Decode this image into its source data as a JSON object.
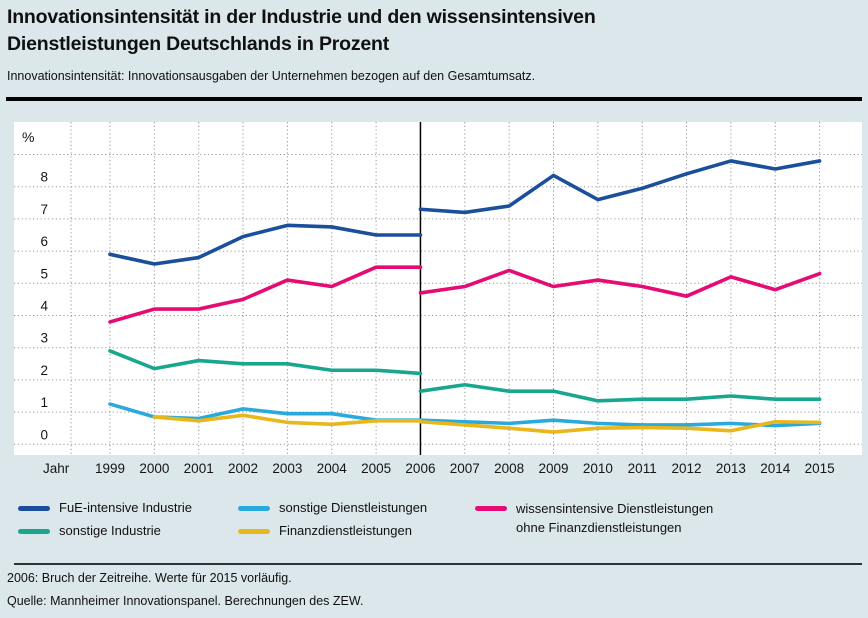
{
  "page": {
    "background": "#dce7ec"
  },
  "header": {
    "title_line1": "Innovationsintensität in der Industrie und den wissensintensiven",
    "title_line2": "Dienstleistungen Deutschlands in Prozent",
    "subtitle": "Innovationsintensität: Innovationsausgaben der Unternehmen bezogen auf den Gesamtumsatz."
  },
  "chart_data": {
    "type": "line",
    "unit_label": "%",
    "xlabel": "Jahr",
    "x": [
      1999,
      2000,
      2001,
      2002,
      2003,
      2004,
      2005,
      2006,
      2007,
      2008,
      2009,
      2010,
      2011,
      2012,
      2013,
      2014,
      2015
    ],
    "yticks": [
      "0",
      "1",
      "2",
      "3",
      "4",
      "5",
      "6",
      "7",
      "8"
    ],
    "ylim": [
      0,
      9
    ],
    "grid": "dotted-both-axes",
    "legend_position": "bottom",
    "break_year": 2006,
    "grid_color": "#95989c",
    "break_line_color": "#000000",
    "series": [
      {
        "name": "FuE-intensive Industrie",
        "color": "#1b4e9b",
        "values_old": [
          5.9,
          5.6,
          5.8,
          6.45,
          6.8,
          6.75,
          6.5,
          6.5
        ],
        "values_new": [
          7.3,
          7.2,
          7.4,
          8.35,
          7.6,
          7.95,
          8.4,
          8.8,
          8.55,
          8.8
        ]
      },
      {
        "name": "sonstige Industrie",
        "color": "#18a78e",
        "values_old": [
          2.9,
          2.35,
          2.6,
          2.5,
          2.5,
          2.3,
          2.3,
          2.2
        ],
        "values_new": [
          1.65,
          1.85,
          1.65,
          1.65,
          1.35,
          1.4,
          1.4,
          1.5,
          1.4,
          1.4
        ]
      },
      {
        "name": "sonstige Dienstleistungen",
        "color": "#2aa9dc",
        "values_old": [
          1.25,
          0.85,
          0.8,
          1.1,
          0.95,
          0.95,
          0.75,
          0.75
        ],
        "values_new": [
          0.75,
          0.7,
          0.65,
          0.75,
          0.65,
          0.6,
          0.6,
          0.65,
          0.58,
          0.65
        ]
      },
      {
        "name": "Finanzdienstleistungen",
        "color": "#e8b71b",
        "values_old": [
          null,
          0.85,
          0.73,
          0.9,
          0.68,
          0.62,
          0.73,
          0.73
        ],
        "values_new": [
          0.7,
          0.6,
          0.5,
          0.38,
          0.5,
          0.52,
          0.5,
          0.42,
          0.7,
          0.68
        ]
      },
      {
        "name": "wissensintensive Dienstleistungen ohne Finanzdienstleistungen",
        "color": "#e50b74",
        "values_old": [
          3.8,
          4.2,
          4.2,
          4.5,
          5.1,
          4.9,
          5.5,
          5.5
        ],
        "values_new": [
          4.7,
          4.9,
          5.4,
          4.9,
          5.1,
          4.9,
          4.6,
          5.2,
          4.8,
          5.3
        ]
      }
    ]
  },
  "legend": {
    "items": [
      {
        "label": "FuE-intensive Industrie",
        "series": 0
      },
      {
        "label": "sonstige Industrie",
        "series": 1
      },
      {
        "label": "sonstige Dienstleistungen",
        "series": 2
      },
      {
        "label": "Finanzdienstleistungen",
        "series": 3
      },
      {
        "label": "wissensintensive Dienstleistungen",
        "label2": "ohne Finanzdienstleistungen",
        "series": 4
      }
    ]
  },
  "footer": {
    "note": "2006: Bruch der Zeitreihe. Werte für 2015 vorläufig.",
    "source": "Quelle: Mannheimer Innovationspanel. Berechnungen des ZEW."
  }
}
